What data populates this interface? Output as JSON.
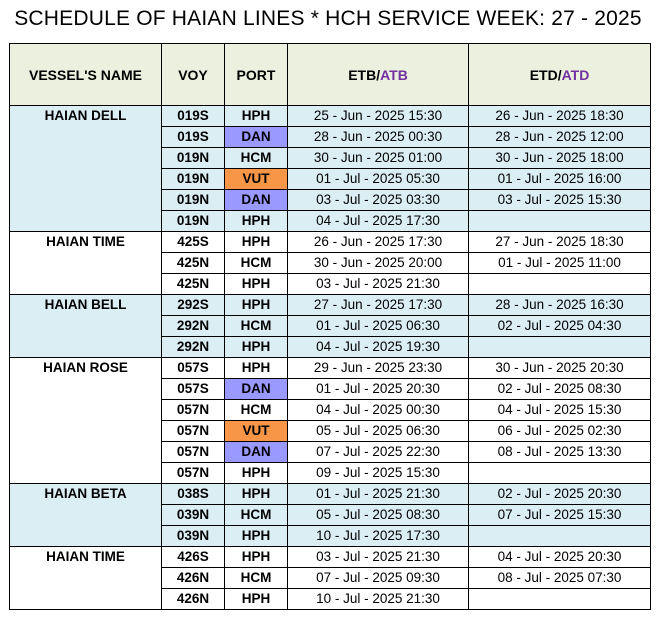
{
  "title": "SCHEDULE OF HAIAN LINES * HCH SERVICE WEEK: 27 - 2025",
  "header": {
    "vessel": "VESSEL'S NAME",
    "voy": "VOY",
    "port": "PORT",
    "etb_main": "ETB/",
    "etb_accent": "ATB",
    "etd_main": "ETD/",
    "etd_accent": "ATD"
  },
  "colors": {
    "header_bg": "#ebf1de",
    "band_blue": "#dbeef4",
    "band_white": "#ffffff",
    "port_dan": "#9999ff",
    "port_vut": "#f79646",
    "accent_text": "#7030a0"
  },
  "vessels": [
    {
      "name": "HAIAN DELL",
      "band": "blue",
      "rows": [
        {
          "voy": "019S",
          "port": "HPH",
          "etb": "25 - Jun - 2025 15:30",
          "etd": "26 - Jun - 2025 18:30"
        },
        {
          "voy": "019S",
          "port": "DAN",
          "etb": "28 - Jun - 2025 00:30",
          "etd": "28 - Jun - 2025 12:00"
        },
        {
          "voy": "019N",
          "port": "HCM",
          "etb": "30 - Jun - 2025 01:00",
          "etd": "30 - Jun - 2025 18:00"
        },
        {
          "voy": "019N",
          "port": "VUT",
          "etb": "01 - Jul - 2025 05:30",
          "etd": "01 - Jul - 2025 16:00"
        },
        {
          "voy": "019N",
          "port": "DAN",
          "etb": "03 - Jul - 2025 03:30",
          "etd": "03 - Jul - 2025 15:30"
        },
        {
          "voy": "019N",
          "port": "HPH",
          "etb": "04 - Jul - 2025 17:30",
          "etd": ""
        }
      ]
    },
    {
      "name": "HAIAN TIME",
      "band": "white",
      "rows": [
        {
          "voy": "425S",
          "port": "HPH",
          "etb": "26 - Jun - 2025 17:30",
          "etd": "27 - Jun - 2025 18:30"
        },
        {
          "voy": "425N",
          "port": "HCM",
          "etb": "30 - Jun - 2025 20:00",
          "etd": "01 - Jul - 2025 11:00"
        },
        {
          "voy": "425N",
          "port": "HPH",
          "etb": "03 - Jul - 2025 21:30",
          "etd": ""
        }
      ]
    },
    {
      "name": "HAIAN BELL",
      "band": "blue",
      "rows": [
        {
          "voy": "292S",
          "port": "HPH",
          "etb": "27 - Jun - 2025 17:30",
          "etd": "28 - Jun - 2025 16:30"
        },
        {
          "voy": "292N",
          "port": "HCM",
          "etb": "01 - Jul - 2025 06:30",
          "etd": "02 - Jul - 2025 04:30"
        },
        {
          "voy": "292N",
          "port": "HPH",
          "etb": "04 - Jul - 2025 19:30",
          "etd": ""
        }
      ]
    },
    {
      "name": "HAIAN ROSE",
      "band": "white",
      "rows": [
        {
          "voy": "057S",
          "port": "HPH",
          "etb": "29 - Jun - 2025 23:30",
          "etd": "30 - Jun - 2025 20:30"
        },
        {
          "voy": "057S",
          "port": "DAN",
          "etb": "01 - Jul - 2025 20:30",
          "etd": "02 - Jul - 2025 08:30"
        },
        {
          "voy": "057N",
          "port": "HCM",
          "etb": "04 - Jul - 2025 00:30",
          "etd": "04 - Jul - 2025 15:30"
        },
        {
          "voy": "057N",
          "port": "VUT",
          "etb": "05 - Jul - 2025 06:30",
          "etd": "06 - Jul - 2025 02:30"
        },
        {
          "voy": "057N",
          "port": "DAN",
          "etb": "07 - Jul - 2025 22:30",
          "etd": "08 - Jul - 2025 13:30"
        },
        {
          "voy": "057N",
          "port": "HPH",
          "etb": "09 - Jul - 2025 15:30",
          "etd": ""
        }
      ]
    },
    {
      "name": "HAIAN BETA",
      "band": "blue",
      "rows": [
        {
          "voy": "038S",
          "port": "HPH",
          "etb": "01 - Jul - 2025 21:30",
          "etd": "02 - Jul - 2025 20:30"
        },
        {
          "voy": "039N",
          "port": "HCM",
          "etb": "05 - Jul - 2025 08:30",
          "etd": "07 - Jul - 2025 15:30"
        },
        {
          "voy": "039N",
          "port": "HPH",
          "etb": "10 - Jul - 2025 17:30",
          "etd": ""
        }
      ]
    },
    {
      "name": "HAIAN TIME",
      "band": "white",
      "rows": [
        {
          "voy": "426S",
          "port": "HPH",
          "etb": "03 - Jul - 2025 21:30",
          "etd": "04 - Jul - 2025 20:30"
        },
        {
          "voy": "426N",
          "port": "HCM",
          "etb": "07 - Jul - 2025 09:30",
          "etd": "08 - Jul - 2025 07:30"
        },
        {
          "voy": "426N",
          "port": "HPH",
          "etb": "10 - Jul - 2025 21:30",
          "etd": ""
        }
      ]
    }
  ]
}
